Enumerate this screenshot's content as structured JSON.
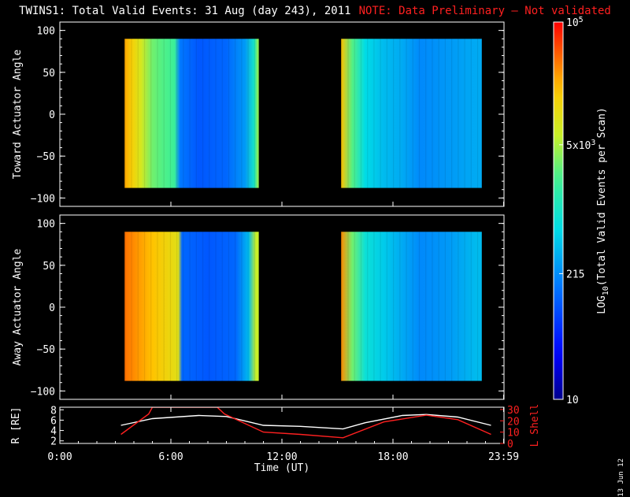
{
  "title": {
    "main": "TWINS1: Total Valid Events: 31 Aug (day 243), 2011",
    "note": "NOTE: Data Preliminary — Not validated"
  },
  "stamp": "13 Jun 12",
  "colors": {
    "background": "#000000",
    "foreground": "#ffffff",
    "note": "#ff2020",
    "lshell_line": "#ff2020",
    "radius_line": "#ffffff"
  },
  "chart_data": [
    {
      "type": "heatmap",
      "panel": "top",
      "ylabel": "Toward Actuator Angle",
      "ylim": [
        -110,
        110
      ],
      "yticks": [
        "100",
        "50",
        "0",
        "−50",
        "−100"
      ],
      "ytick_values": [
        100,
        50,
        0,
        -50,
        -100
      ],
      "data_y_range": [
        -88,
        90
      ],
      "segments": [
        {
          "start_hour": 3.5,
          "end_hour": 10.75,
          "profile": [
            {
              "t": 3.5,
              "v": 4.4
            },
            {
              "t": 3.9,
              "v": 4.2
            },
            {
              "t": 4.4,
              "v": 3.9
            },
            {
              "t": 5.0,
              "v": 3.5
            },
            {
              "t": 5.5,
              "v": 3.4
            },
            {
              "t": 6.2,
              "v": 3.3
            },
            {
              "t": 6.5,
              "v": 2.2
            },
            {
              "t": 7.5,
              "v": 2.0
            },
            {
              "t": 9.0,
              "v": 2.1
            },
            {
              "t": 10.0,
              "v": 2.4
            },
            {
              "t": 10.5,
              "v": 3.0
            },
            {
              "t": 10.7,
              "v": 3.6
            }
          ]
        },
        {
          "start_hour": 15.2,
          "end_hour": 22.8,
          "profile": [
            {
              "t": 15.2,
              "v": 4.3
            },
            {
              "t": 15.8,
              "v": 3.4
            },
            {
              "t": 16.5,
              "v": 2.8
            },
            {
              "t": 17.5,
              "v": 2.6
            },
            {
              "t": 18.5,
              "v": 2.5
            },
            {
              "t": 19.5,
              "v": 2.3
            },
            {
              "t": 21.0,
              "v": 2.4
            },
            {
              "t": 22.5,
              "v": 2.5
            }
          ]
        }
      ]
    },
    {
      "type": "heatmap",
      "panel": "bottom",
      "ylabel": "Away Actuator Angle",
      "ylim": [
        -110,
        110
      ],
      "yticks": [
        "100",
        "50",
        "0",
        "−50",
        "−100"
      ],
      "ytick_values": [
        100,
        50,
        0,
        -50,
        -100
      ],
      "data_y_range": [
        -88,
        90
      ],
      "segments": [
        {
          "start_hour": 3.5,
          "end_hour": 10.75,
          "profile": [
            {
              "t": 3.5,
              "v": 4.6
            },
            {
              "t": 4.0,
              "v": 4.5
            },
            {
              "t": 5.0,
              "v": 4.3
            },
            {
              "t": 6.0,
              "v": 4.1
            },
            {
              "t": 6.4,
              "v": 4.0
            },
            {
              "t": 6.6,
              "v": 2.1
            },
            {
              "t": 8.0,
              "v": 2.0
            },
            {
              "t": 9.5,
              "v": 2.1
            },
            {
              "t": 10.2,
              "v": 2.6
            },
            {
              "t": 10.6,
              "v": 3.8
            }
          ]
        },
        {
          "start_hour": 15.2,
          "end_hour": 22.8,
          "profile": [
            {
              "t": 15.2,
              "v": 4.5
            },
            {
              "t": 15.8,
              "v": 3.5
            },
            {
              "t": 16.5,
              "v": 2.9
            },
            {
              "t": 17.5,
              "v": 2.7
            },
            {
              "t": 18.5,
              "v": 2.5
            },
            {
              "t": 19.5,
              "v": 2.3
            },
            {
              "t": 21.0,
              "v": 2.4
            },
            {
              "t": 22.5,
              "v": 2.6
            }
          ]
        }
      ]
    },
    {
      "type": "line",
      "panel": "orbit",
      "xlabel": "Time (UT)",
      "xlim": [
        0,
        24
      ],
      "xticks": [
        "0:00",
        "6:00",
        "12:00",
        "18:00",
        "23:59"
      ],
      "xtick_values": [
        0,
        6,
        12,
        18,
        23.98
      ],
      "ylabel": "R [RE]",
      "ylim": [
        1.5,
        8.5
      ],
      "yticks": [
        "8",
        "6",
        "4",
        "2"
      ],
      "ytick_values": [
        8,
        6,
        4,
        2
      ],
      "ylabel_right": "L Shell",
      "ylim_right": [
        0,
        32
      ],
      "yticks_right": [
        "30",
        "20",
        "10",
        "0"
      ],
      "ytick_values_right": [
        30,
        20,
        10,
        0
      ],
      "series": [
        {
          "name": "R [RE]",
          "axis": "left",
          "color": "#ffffff",
          "x": [
            3.3,
            5.0,
            7.5,
            9.0,
            11.0,
            13.0,
            15.3,
            16.5,
            18.5,
            19.8,
            21.5,
            23.3
          ],
          "y": [
            5.0,
            6.3,
            6.9,
            6.7,
            5.0,
            4.8,
            4.3,
            5.5,
            6.9,
            7.1,
            6.6,
            5.0
          ]
        },
        {
          "name": "L Shell",
          "axis": "right",
          "color": "#ff2020",
          "x": [
            3.3,
            4.8,
            5.0,
            8.5,
            8.9,
            11.0,
            13.0,
            15.3,
            17.5,
            19.8,
            21.5,
            23.3
          ],
          "y": [
            8,
            26,
            32,
            32,
            26,
            10,
            8,
            5,
            19,
            25,
            21,
            8
          ]
        }
      ]
    },
    {
      "type": "heatmap",
      "panel": "colorbar",
      "ylabel": "LOG10(Total Valid Events per Scan)",
      "scale": "log",
      "range": [
        10,
        100000
      ],
      "tick_labels": [
        "10^5",
        "5x10^3",
        "215",
        "10"
      ],
      "tick_values": [
        100000,
        5000,
        215,
        10
      ]
    }
  ]
}
